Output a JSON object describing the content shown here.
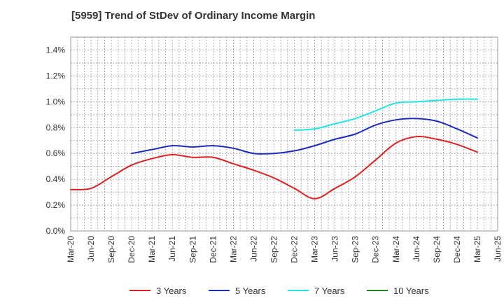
{
  "title": "[5959]  Trend of StDev of Ordinary Income Margin",
  "chart_data": {
    "type": "line",
    "title": "[5959]  Trend of StDev of Ordinary Income Margin",
    "xlabel": "",
    "ylabel": "",
    "x_ticks": [
      "Mar-20",
      "Jun-20",
      "Sep-20",
      "Dec-20",
      "Mar-21",
      "Jun-21",
      "Sep-21",
      "Dec-21",
      "Mar-22",
      "Jun-22",
      "Sep-22",
      "Dec-22",
      "Mar-23",
      "Jun-23",
      "Sep-23",
      "Dec-23",
      "Mar-24",
      "Jun-24",
      "Sep-24",
      "Dec-24",
      "Mar-25",
      "Jun-25"
    ],
    "y_ticks": [
      "0.0%",
      "0.2%",
      "0.4%",
      "0.6%",
      "0.8%",
      "1.0%",
      "1.2%",
      "1.4%"
    ],
    "ylim": [
      0,
      1.5
    ],
    "y_unit": "%",
    "grid": true,
    "legend_position": "bottom",
    "series": [
      {
        "name": "3 Years",
        "color": "#e02020",
        "values": [
          0.32,
          0.33,
          0.42,
          0.51,
          0.56,
          0.59,
          0.57,
          0.57,
          0.52,
          0.47,
          0.41,
          0.33,
          0.25,
          0.33,
          0.42,
          0.55,
          0.68,
          0.73,
          0.71,
          0.67,
          0.61,
          null
        ]
      },
      {
        "name": "5 Years",
        "color": "#1c2bbf",
        "values": [
          null,
          null,
          null,
          0.6,
          0.63,
          0.66,
          0.65,
          0.66,
          0.64,
          0.6,
          0.6,
          0.62,
          0.66,
          0.71,
          0.75,
          0.82,
          0.86,
          0.87,
          0.85,
          0.79,
          0.72,
          null
        ]
      },
      {
        "name": "7 Years",
        "color": "#22e5e5",
        "values": [
          null,
          null,
          null,
          null,
          null,
          null,
          null,
          null,
          null,
          null,
          null,
          0.78,
          0.79,
          0.83,
          0.87,
          0.93,
          0.99,
          1.0,
          1.01,
          1.02,
          1.02,
          null
        ]
      },
      {
        "name": "10 Years",
        "color": "#1e8a1e",
        "values": [
          null,
          null,
          null,
          null,
          null,
          null,
          null,
          null,
          null,
          null,
          null,
          null,
          null,
          null,
          null,
          null,
          null,
          null,
          null,
          null,
          null,
          null
        ]
      }
    ]
  }
}
